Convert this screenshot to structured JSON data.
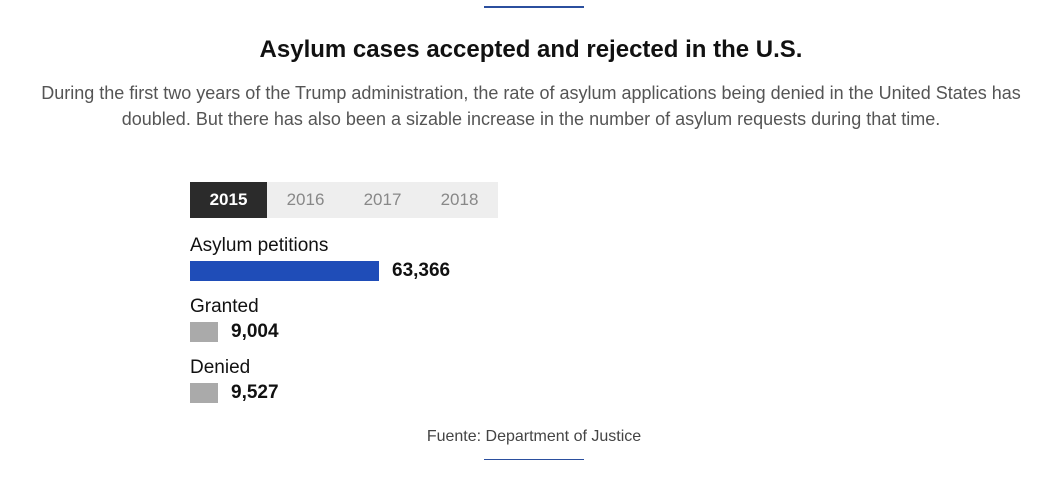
{
  "header": {
    "title": "Asylum cases accepted and rejected in the U.S.",
    "subtitle": "During the first two years of the Trump administration, the rate of asylum applications being denied in the United States has doubled. But there has also been a sizable increase in the number of asylum requests during that time."
  },
  "tabs": [
    {
      "label": "2015",
      "active": true
    },
    {
      "label": "2016",
      "active": false
    },
    {
      "label": "2017",
      "active": false
    },
    {
      "label": "2018",
      "active": false
    }
  ],
  "chart_data": {
    "type": "bar",
    "categories": [
      "Asylum petitions",
      "Granted",
      "Denied"
    ],
    "values": [
      63366,
      9004,
      9527
    ],
    "value_labels": [
      "63,366",
      "9,004",
      "9,527"
    ],
    "colors": [
      "#1f4db8",
      "#aaaaaa",
      "#aaaaaa"
    ],
    "selected_year": "2015"
  },
  "footer": {
    "source": "Fuente: Department of Justice"
  },
  "colors": {
    "accent": "#2b4f9e",
    "tab_active_bg": "#2b2b2b",
    "tab_bg": "#eeeeee"
  }
}
